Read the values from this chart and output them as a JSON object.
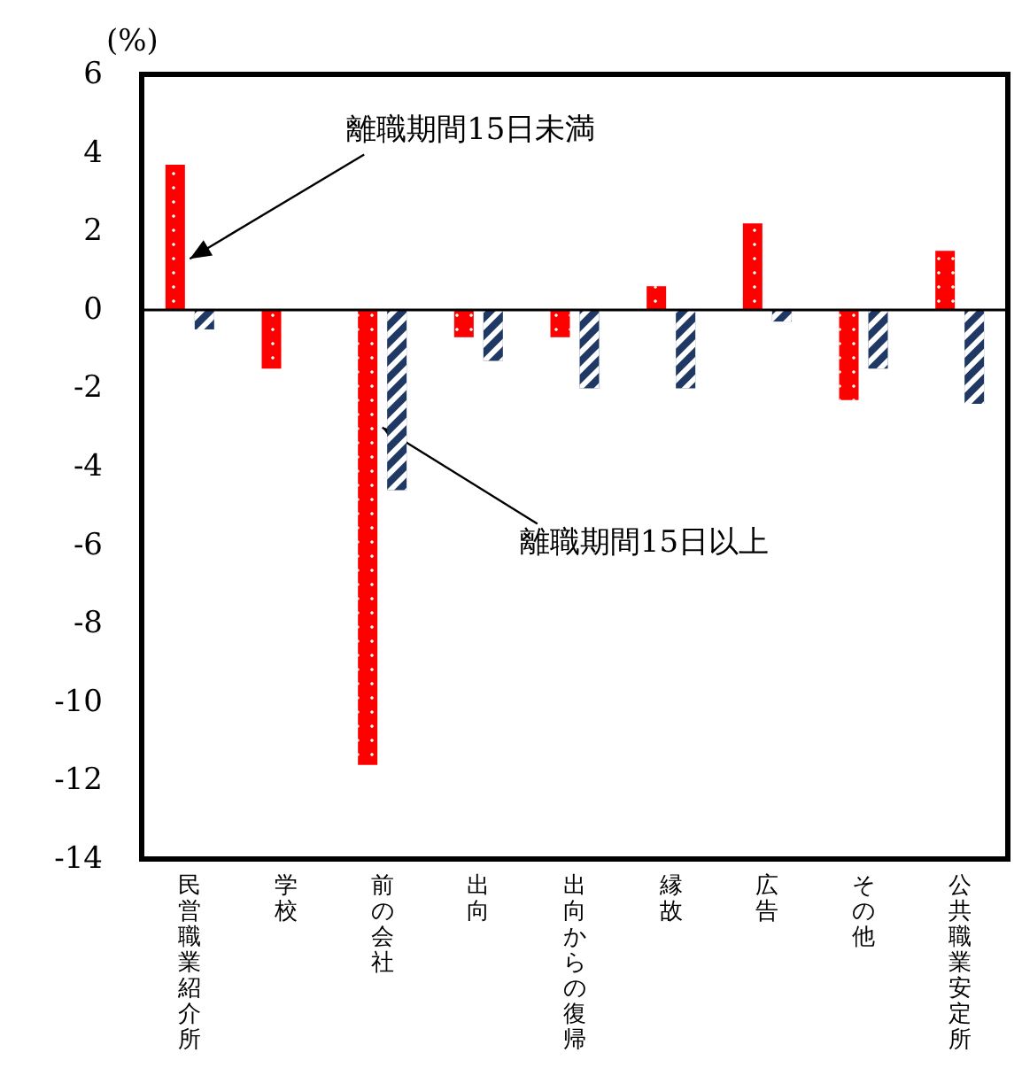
{
  "chart_data": {
    "type": "bar",
    "ylabel": "(%)",
    "categories": [
      "民営職業紹介所",
      "学校",
      "前の会社",
      "出向",
      "出向からの復帰",
      "縁故",
      "広告",
      "その他",
      "公共職業安定所"
    ],
    "series": [
      {
        "color": "#ff0000",
        "values": [
          3.7,
          -1.5,
          -11.6,
          -0.7,
          -0.7,
          0.6,
          2.2,
          -2.3,
          1.5
        ]
      },
      {
        "color": "#1f3864",
        "values": [
          -0.5,
          0,
          -4.6,
          -1.3,
          -2.0,
          -2.0,
          -0.3,
          -1.5,
          -2.4
        ]
      }
    ],
    "ylim": [
      -14,
      6
    ],
    "yticks": [
      -14,
      -12,
      -10,
      -8,
      -6,
      -4,
      -2,
      0,
      2,
      4,
      6
    ],
    "grid": false,
    "ref_lines": [
      {
        "axis": "y",
        "value": 0
      }
    ],
    "annotations": [
      {
        "text": "離職期間15日未満",
        "x": "民営職業紹介所",
        "y": 1.3
      },
      {
        "text": "離職期間15日以上",
        "x": "前の会社",
        "y": -3.0
      }
    ]
  }
}
